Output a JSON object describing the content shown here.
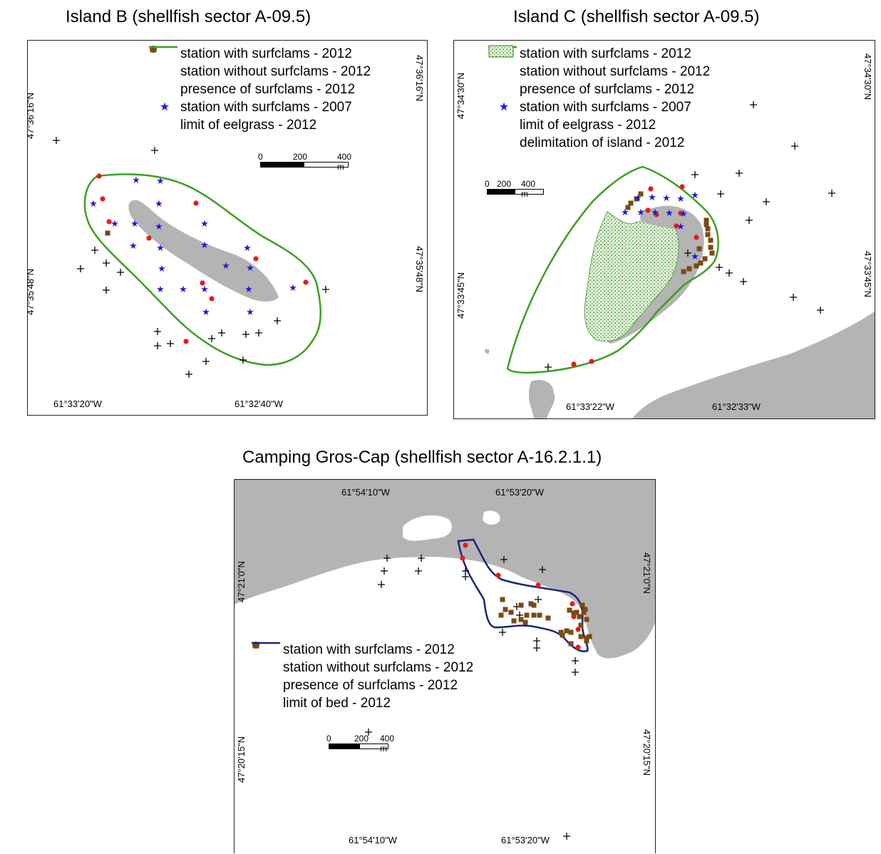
{
  "titles": {
    "island_b": "Island B (shellfish sector A-09.5)",
    "island_c": "Island C (shellfish sector A-09.5)",
    "gros_cap": "Camping Gros-Cap (shellfish sector A-16.2.1.1)"
  },
  "legend": {
    "station_with_2012": "station with surfclams - 2012",
    "station_without_2012": "station without surfclams - 2012",
    "presence_2012": "presence of surfclams - 2012",
    "station_with_2007": "station with surfclams - 2007",
    "eelgrass_limit_2012": "limit of eelgrass - 2012",
    "island_delim_2012": "delimitation of island - 2012",
    "bed_limit_2012": "limit of bed - 2012"
  },
  "scale": {
    "zero": "0",
    "mid": "200",
    "max": "400 m"
  },
  "map_b": {
    "lat_top": "47°36'16\"N",
    "lat_bottom": "47°35'48\"N",
    "lon_left": "61°33'20\"W",
    "lon_right": "61°32'40\"W"
  },
  "map_c": {
    "lat_top": "47°34'30\"N",
    "lat_bottom": "47°33'45\"N",
    "lon_left": "61°33'22\"W",
    "lon_right": "61°32'33\"W"
  },
  "map_g": {
    "lat_top": "47°21'0\"N",
    "lat_bottom": "47°20'15\"N",
    "lon_left": "61°54'10\"W",
    "lon_right": "61°53'20\"W"
  },
  "colors": {
    "surfclam_2012": "#e81a1a",
    "presence": "#7a4a12",
    "star_2007": "#1a1ae0",
    "eelgrass": "#3aa01e",
    "bed": "#1a237e",
    "land": "#b4b4b4"
  }
}
